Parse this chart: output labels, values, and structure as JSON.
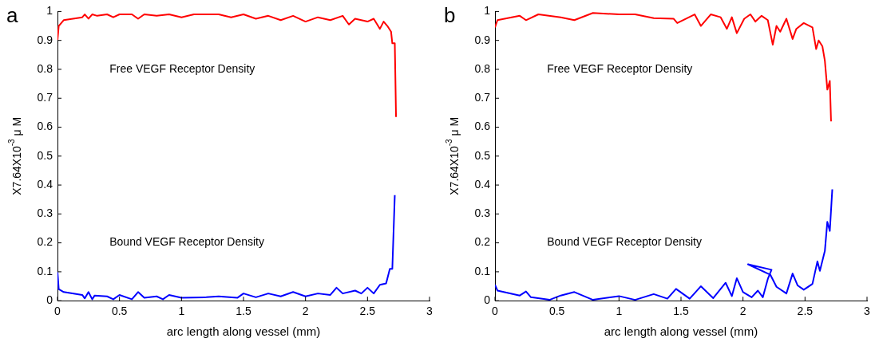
{
  "chart_data": [
    {
      "type": "line",
      "title": "a",
      "annotations": [
        "Free VEGF Receptor Density",
        "Bound VEGF Receptor Density"
      ],
      "xlabel": "arc length along vessel (mm)",
      "ylabel": "X7.64X10$^{-3}$ μ M",
      "xlim": [
        0,
        3
      ],
      "ylim": [
        0,
        1
      ],
      "xticks": [
        0,
        0.5,
        1,
        1.5,
        2,
        2.5,
        3
      ],
      "yticks": [
        0,
        0.1,
        0.2,
        0.3,
        0.4,
        0.5,
        0.6,
        0.7,
        0.8,
        0.9,
        1
      ],
      "legend": false,
      "marker": "none",
      "series": [
        {
          "color": "#ff0000",
          "x": [
            0,
            0.01,
            0.05,
            0.2,
            0.22,
            0.25,
            0.28,
            0.32,
            0.4,
            0.45,
            0.5,
            0.6,
            0.65,
            0.7,
            0.8,
            0.9,
            1.0,
            1.1,
            1.3,
            1.4,
            1.5,
            1.6,
            1.7,
            1.8,
            1.9,
            2.0,
            2.1,
            2.2,
            2.3,
            2.35,
            2.4,
            2.45,
            2.5,
            2.55,
            2.6,
            2.63,
            2.66,
            2.69,
            2.7,
            2.72,
            2.73
          ],
          "values": [
            0.9,
            0.95,
            0.97,
            0.98,
            0.99,
            0.975,
            0.99,
            0.985,
            0.99,
            0.98,
            0.99,
            0.99,
            0.975,
            0.99,
            0.985,
            0.99,
            0.98,
            0.99,
            0.99,
            0.98,
            0.99,
            0.975,
            0.985,
            0.97,
            0.985,
            0.965,
            0.98,
            0.97,
            0.985,
            0.955,
            0.975,
            0.97,
            0.965,
            0.975,
            0.94,
            0.965,
            0.95,
            0.93,
            0.89,
            0.89,
            0.635
          ]
        },
        {
          "color": "#0000ff",
          "x": [
            0,
            0.01,
            0.05,
            0.2,
            0.22,
            0.25,
            0.28,
            0.3,
            0.4,
            0.45,
            0.5,
            0.6,
            0.65,
            0.7,
            0.8,
            0.85,
            0.9,
            1.0,
            1.2,
            1.3,
            1.45,
            1.5,
            1.6,
            1.7,
            1.8,
            1.9,
            2.0,
            2.1,
            2.2,
            2.25,
            2.3,
            2.4,
            2.45,
            2.5,
            2.55,
            2.6,
            2.65,
            2.68,
            2.7,
            2.72
          ],
          "values": [
            0.1,
            0.04,
            0.03,
            0.02,
            0.008,
            0.03,
            0.005,
            0.018,
            0.015,
            0.005,
            0.02,
            0.005,
            0.03,
            0.01,
            0.015,
            0.005,
            0.02,
            0.01,
            0.012,
            0.015,
            0.01,
            0.025,
            0.012,
            0.025,
            0.015,
            0.03,
            0.015,
            0.025,
            0.02,
            0.045,
            0.025,
            0.035,
            0.025,
            0.045,
            0.025,
            0.055,
            0.06,
            0.11,
            0.11,
            0.365
          ]
        }
      ]
    },
    {
      "type": "line",
      "title": "b",
      "annotations": [
        "Free VEGF Receptor Density",
        "Bound VEGF Receptor Density"
      ],
      "xlabel": "arc length along vessel (mm)",
      "ylabel": "X7.64X10$^{-3}$ μ M",
      "xlim": [
        0,
        3
      ],
      "ylim": [
        0,
        1
      ],
      "xticks": [
        0,
        0.5,
        1,
        1.5,
        2,
        2.5,
        3
      ],
      "yticks": [
        0,
        0.1,
        0.2,
        0.3,
        0.4,
        0.5,
        0.6,
        0.7,
        0.8,
        0.9,
        1
      ],
      "legend": false,
      "marker": "none",
      "series": [
        {
          "color": "#ff0000",
          "x": [
            0,
            0.02,
            0.2,
            0.25,
            0.35,
            0.53,
            0.64,
            0.79,
            1.0,
            1.13,
            1.28,
            1.44,
            1.47,
            1.61,
            1.66,
            1.74,
            1.82,
            1.87,
            1.91,
            1.95,
            2.01,
            2.06,
            2.1,
            2.15,
            2.2,
            2.24,
            2.27,
            2.3,
            2.35,
            2.4,
            2.43,
            2.49,
            2.56,
            2.59,
            2.61,
            2.64,
            2.66,
            2.68,
            2.7,
            2.71
          ],
          "values": [
            0.945,
            0.97,
            0.985,
            0.97,
            0.99,
            0.98,
            0.97,
            0.995,
            0.99,
            0.99,
            0.977,
            0.975,
            0.96,
            0.99,
            0.95,
            0.99,
            0.98,
            0.94,
            0.98,
            0.925,
            0.975,
            0.99,
            0.965,
            0.985,
            0.97,
            0.885,
            0.95,
            0.93,
            0.975,
            0.905,
            0.94,
            0.96,
            0.945,
            0.87,
            0.9,
            0.88,
            0.83,
            0.73,
            0.76,
            0.62
          ]
        },
        {
          "color": "#0000ff",
          "x": [
            0,
            0.02,
            0.2,
            0.25,
            0.29,
            0.44,
            0.53,
            0.64,
            0.79,
            1.0,
            1.13,
            1.28,
            1.39,
            1.46,
            1.57,
            1.66,
            1.76,
            1.86,
            1.91,
            1.95,
            2.0,
            2.07,
            2.12,
            2.16,
            2.2,
            2.23,
            2.04,
            2.22,
            2.27,
            2.35,
            2.4,
            2.44,
            2.49,
            2.56,
            2.6,
            2.62,
            2.66,
            2.68,
            2.7,
            2.72
          ],
          "values": [
            0.055,
            0.035,
            0.018,
            0.032,
            0.012,
            0.003,
            0.018,
            0.03,
            0.003,
            0.016,
            0.003,
            0.023,
            0.007,
            0.041,
            0.007,
            0.05,
            0.009,
            0.062,
            0.016,
            0.078,
            0.03,
            0.012,
            0.035,
            0.012,
            0.075,
            0.107,
            0.126,
            0.09,
            0.048,
            0.025,
            0.094,
            0.053,
            0.038,
            0.058,
            0.136,
            0.103,
            0.172,
            0.273,
            0.241,
            0.385
          ]
        }
      ]
    }
  ]
}
